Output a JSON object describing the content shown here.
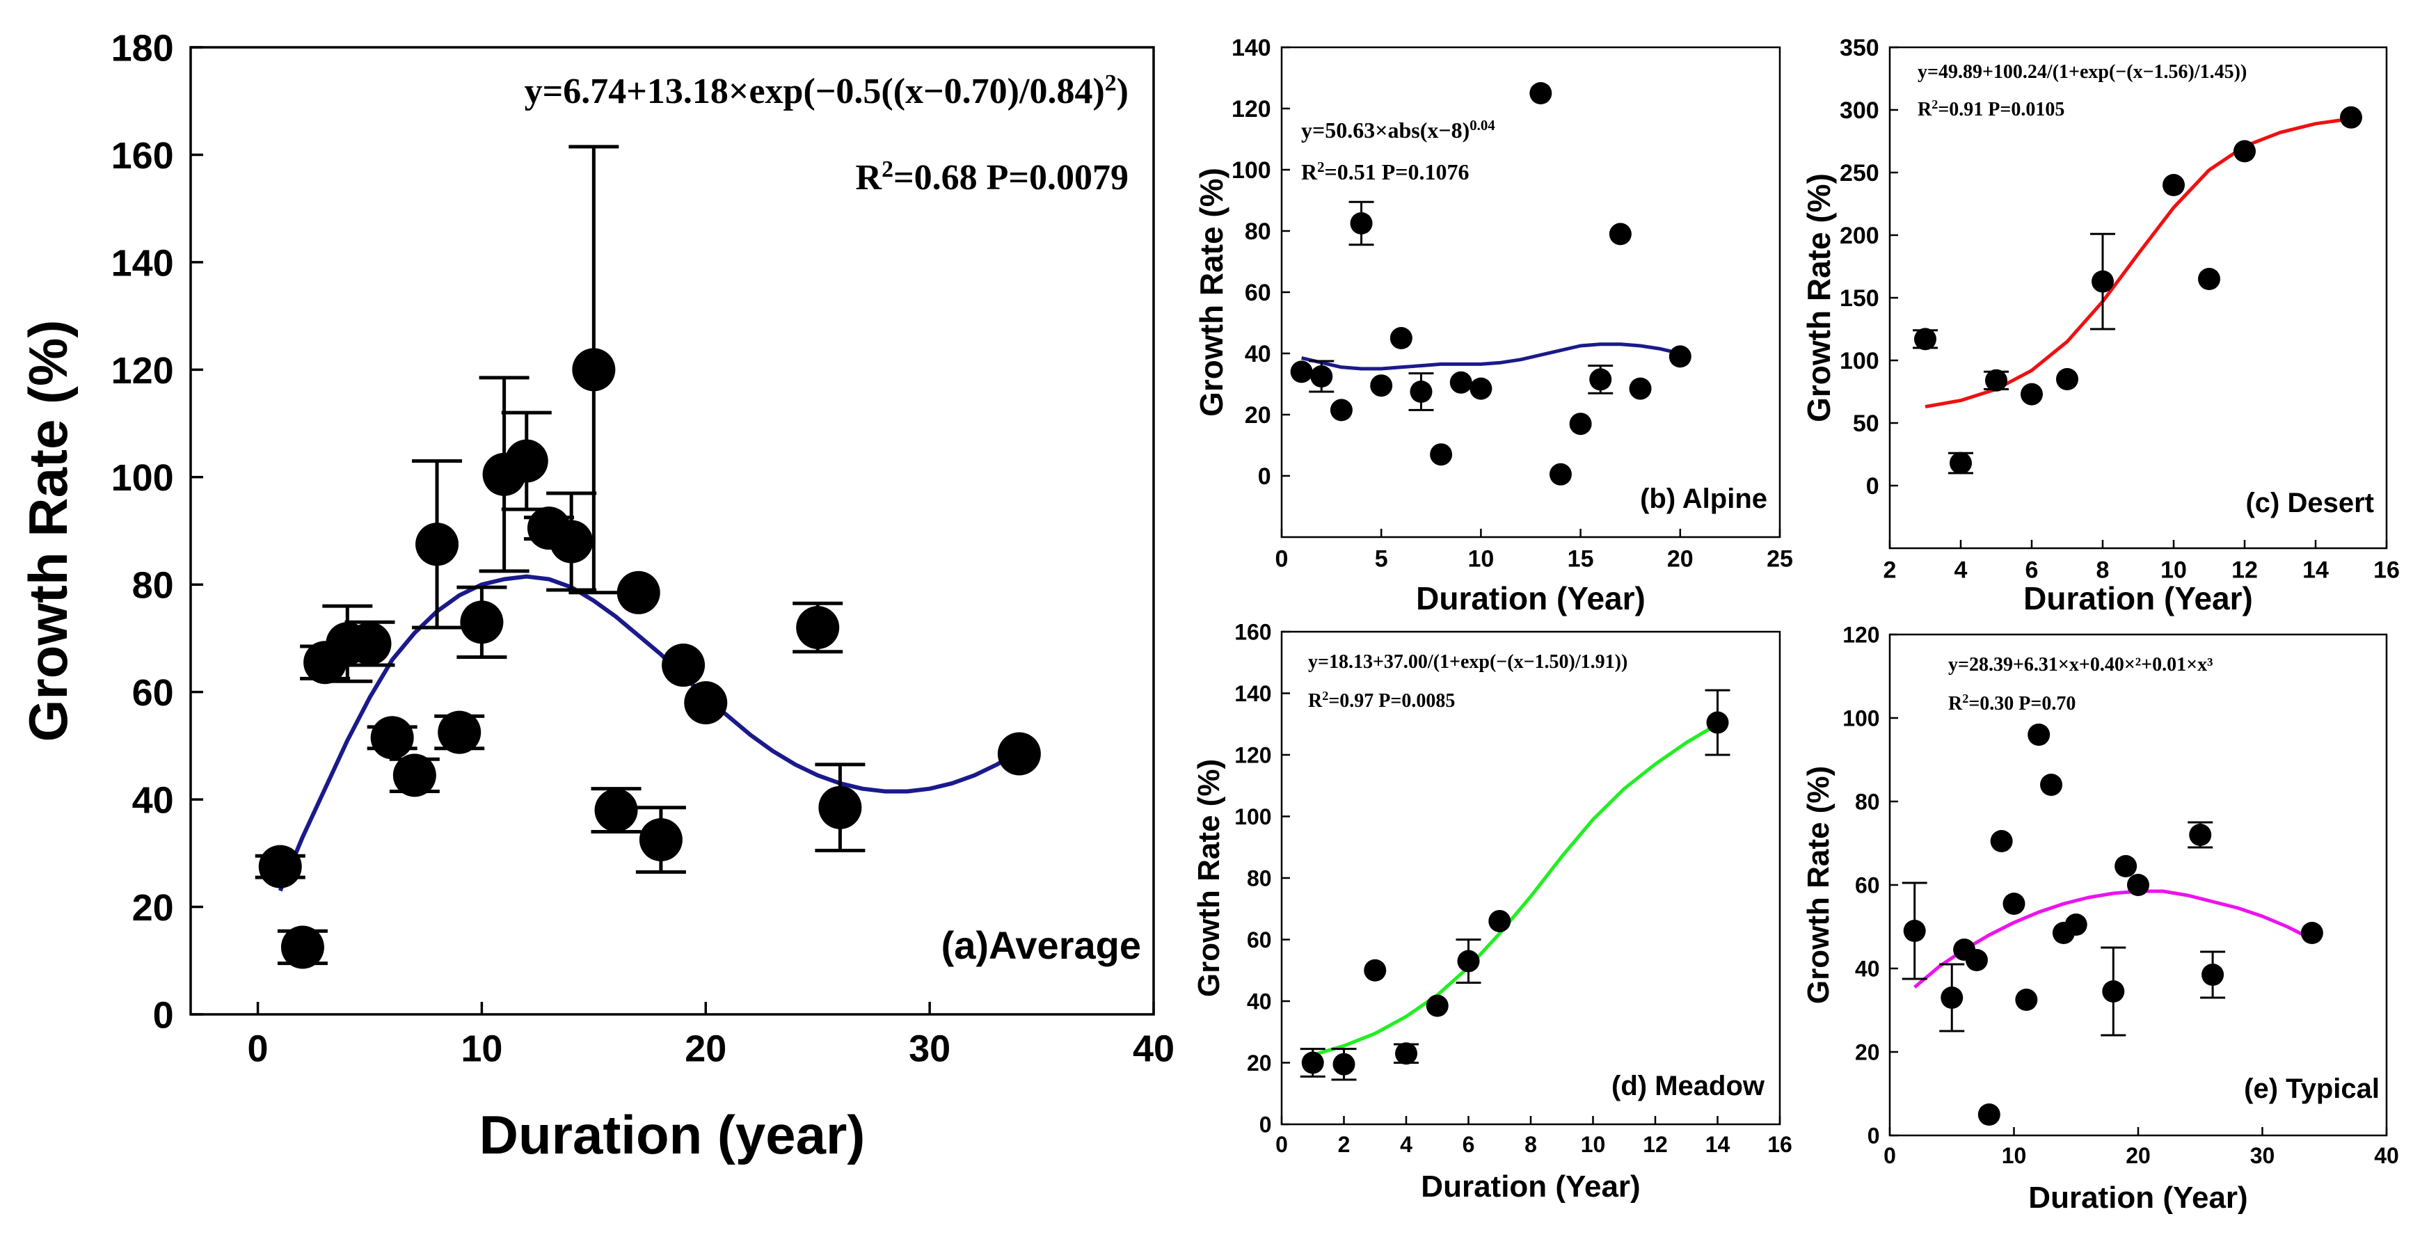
{
  "chart_data": [
    {
      "id": "a",
      "type": "scatter",
      "panel_label": "(a)Average",
      "xlabel": "Duration (year)",
      "ylabel": "Growth Rate (%)",
      "xlim": [
        -3,
        40
      ],
      "ylim": [
        0,
        180
      ],
      "xticks": [
        0,
        10,
        20,
        30,
        40
      ],
      "yticks": [
        0,
        20,
        40,
        60,
        80,
        100,
        120,
        140,
        160,
        180
      ],
      "equation": "y=6.74+13.18×exp(−0.5((x−0.70)/0.84)",
      "equation_sup": "2",
      "equation_tail": ")",
      "stats_R": "R",
      "stats_sup": "2",
      "stats_rest": "=0.68 P=0.0079",
      "fit": {
        "color": "#1a1a8c",
        "x": [
          1,
          2,
          3,
          4,
          5,
          6,
          7,
          8,
          9,
          10,
          11,
          12,
          13,
          14,
          15,
          16,
          17,
          18,
          19,
          20,
          21,
          22,
          23,
          24,
          25,
          26,
          27,
          28,
          29,
          30,
          31,
          32,
          33,
          34
        ],
        "y": [
          23,
          33,
          42,
          51,
          59,
          66,
          71,
          75,
          78,
          80,
          81,
          81.5,
          81,
          79.5,
          77,
          74,
          70.5,
          67,
          63,
          59,
          55.5,
          52,
          49,
          46.5,
          44.5,
          43,
          42,
          41.5,
          41.5,
          42,
          43,
          44.5,
          46.5,
          49
        ]
      },
      "points": [
        {
          "x": 1,
          "y": 27.5,
          "err": 2
        },
        {
          "x": 2,
          "y": 12.5,
          "err": 3
        },
        {
          "x": 3,
          "y": 65.5,
          "err": 3
        },
        {
          "x": 4,
          "y": 69,
          "err": 7
        },
        {
          "x": 5,
          "y": 69,
          "err": 4
        },
        {
          "x": 6,
          "y": 51.5,
          "err": 2
        },
        {
          "x": 7,
          "y": 44.5,
          "err": 3
        },
        {
          "x": 8,
          "y": 87.5,
          "err": 15.5
        },
        {
          "x": 9,
          "y": 52.5,
          "err": 3
        },
        {
          "x": 10,
          "y": 73,
          "err": 6.5
        },
        {
          "x": 11,
          "y": 100.5,
          "err": 18
        },
        {
          "x": 12,
          "y": 103,
          "err": 9
        },
        {
          "x": 13,
          "y": 90.5,
          "err": 2
        },
        {
          "x": 14,
          "y": 88,
          "err": 9
        },
        {
          "x": 15,
          "y": 120,
          "err": 41.5
        },
        {
          "x": 16,
          "y": 38,
          "err": 4
        },
        {
          "x": 17,
          "y": 78.5,
          "err": 0
        },
        {
          "x": 18,
          "y": 32.5,
          "err": 6
        },
        {
          "x": 19,
          "y": 65,
          "err": 0
        },
        {
          "x": 20,
          "y": 58,
          "err": 0
        },
        {
          "x": 25,
          "y": 72,
          "err": 4.5
        },
        {
          "x": 26,
          "y": 38.5,
          "err": 8
        },
        {
          "x": 34,
          "y": 48.5,
          "err": 0
        }
      ]
    },
    {
      "id": "b",
      "type": "scatter",
      "panel_label": "(b) Alpine",
      "xlabel": "Duration (Year)",
      "ylabel": "Growth Rate (%)",
      "xlim": [
        0,
        25
      ],
      "ylim": [
        -20,
        140
      ],
      "xticks": [
        0,
        5,
        10,
        15,
        20,
        25
      ],
      "yticks": [
        0,
        20,
        40,
        60,
        80,
        100,
        120,
        140
      ],
      "equation": "y=50.63×abs(x−8)",
      "equation_sup": "0.04",
      "stats_R": "R",
      "stats_sup": "2",
      "stats_rest": "=0.51 P=0.1076",
      "fit": {
        "color": "#1a1a8c",
        "x": [
          1,
          2,
          3,
          4,
          5,
          6,
          7,
          8,
          9,
          10,
          11,
          12,
          13,
          14,
          15,
          16,
          17,
          18,
          19,
          20
        ],
        "y": [
          38.5,
          37,
          35.5,
          35,
          35,
          35.5,
          36,
          36.5,
          36.5,
          36.5,
          37,
          38,
          39.5,
          41,
          42.5,
          43,
          43,
          42.5,
          41.5,
          40
        ]
      },
      "points": [
        {
          "x": 1,
          "y": 34,
          "err": 0
        },
        {
          "x": 2,
          "y": 32.5,
          "err": 5
        },
        {
          "x": 3,
          "y": 21.5,
          "err": 0
        },
        {
          "x": 4,
          "y": 82.5,
          "err": 7
        },
        {
          "x": 5,
          "y": 29.5,
          "err": 0
        },
        {
          "x": 6,
          "y": 45,
          "err": 0
        },
        {
          "x": 7,
          "y": 27.5,
          "err": 6
        },
        {
          "x": 8,
          "y": 7,
          "err": 0
        },
        {
          "x": 9,
          "y": 30.5,
          "err": 0
        },
        {
          "x": 10,
          "y": 28.5,
          "err": 0
        },
        {
          "x": 13,
          "y": 125,
          "err": 0
        },
        {
          "x": 14,
          "y": 0.5,
          "err": 0
        },
        {
          "x": 15,
          "y": 17,
          "err": 0
        },
        {
          "x": 16,
          "y": 31.5,
          "err": 4.5
        },
        {
          "x": 17,
          "y": 79,
          "err": 0
        },
        {
          "x": 18,
          "y": 28.5,
          "err": 0
        },
        {
          "x": 20,
          "y": 39,
          "err": 0
        }
      ]
    },
    {
      "id": "c",
      "type": "scatter",
      "panel_label": "(c) Desert",
      "xlabel": "Duration (Year)",
      "ylabel": "Growth Rate (%)",
      "xlim": [
        2,
        16
      ],
      "ylim": [
        -50,
        350
      ],
      "xticks": [
        2,
        4,
        6,
        8,
        10,
        12,
        14,
        16
      ],
      "yticks": [
        0,
        50,
        100,
        150,
        200,
        250,
        300,
        350
      ],
      "equation": "y=49.89+100.24/(1+exp(−(x−1.56)/1.45))",
      "stats_R": "R",
      "stats_sup": "2",
      "stats_rest": "=0.91 P=0.0105",
      "fit": {
        "color": "#ee1111",
        "x": [
          3,
          4,
          5,
          6,
          7,
          8,
          9,
          10,
          11,
          12,
          13,
          14,
          15
        ],
        "y": [
          63,
          68,
          77,
          92,
          115,
          147,
          185,
          222,
          252,
          271,
          282,
          289,
          293
        ]
      },
      "points": [
        {
          "x": 3,
          "y": 117,
          "err": 7
        },
        {
          "x": 4,
          "y": 18,
          "err": 8
        },
        {
          "x": 5,
          "y": 84,
          "err": 7
        },
        {
          "x": 6,
          "y": 73,
          "err": 0
        },
        {
          "x": 7,
          "y": 85,
          "err": 0
        },
        {
          "x": 8,
          "y": 163,
          "err": 38
        },
        {
          "x": 10,
          "y": 240,
          "err": 0
        },
        {
          "x": 11,
          "y": 165,
          "err": 0
        },
        {
          "x": 12,
          "y": 267,
          "err": 0
        },
        {
          "x": 15,
          "y": 294,
          "err": 0
        }
      ]
    },
    {
      "id": "d",
      "type": "scatter",
      "panel_label": "(d) Meadow",
      "xlabel": "Duration (Year)",
      "ylabel": "Growth Rate (%)",
      "xlim": [
        0,
        16
      ],
      "ylim": [
        0,
        160
      ],
      "xticks": [
        0,
        2,
        4,
        6,
        8,
        10,
        12,
        14,
        16
      ],
      "yticks": [
        0,
        20,
        40,
        60,
        80,
        100,
        120,
        140,
        160
      ],
      "equation": "y=18.13+37.00/(1+exp(−(x−1.50)/1.91))",
      "stats_R": "R",
      "stats_sup": "2",
      "stats_rest": "=0.97 P=0.0085",
      "fit": {
        "color": "#22ee22",
        "x": [
          1,
          2,
          3,
          4,
          5,
          6,
          7,
          8,
          9,
          10,
          11,
          12,
          13,
          14
        ],
        "y": [
          22.5,
          25.5,
          29.5,
          35,
          42,
          51,
          62,
          74,
          87,
          99,
          109,
          117,
          124,
          130
        ]
      },
      "points": [
        {
          "x": 1,
          "y": 20,
          "err": 4.5
        },
        {
          "x": 2,
          "y": 19.5,
          "err": 5
        },
        {
          "x": 3,
          "y": 50,
          "err": 0
        },
        {
          "x": 4,
          "y": 23,
          "err": 3
        },
        {
          "x": 5,
          "y": 38.5,
          "err": 0
        },
        {
          "x": 6,
          "y": 53,
          "err": 7
        },
        {
          "x": 7,
          "y": 66,
          "err": 0
        },
        {
          "x": 14,
          "y": 130.5,
          "err": 10.5
        }
      ]
    },
    {
      "id": "e",
      "type": "scatter",
      "panel_label": "(e) Typical",
      "xlabel": "Duration (Year)",
      "ylabel": "Growth Rate (%)",
      "xlim": [
        0,
        40
      ],
      "ylim": [
        0,
        120
      ],
      "xticks": [
        0,
        10,
        20,
        30,
        40
      ],
      "yticks": [
        0,
        20,
        40,
        60,
        80,
        100,
        120
      ],
      "equation": "y=28.39+6.31×x+0.40×²+0.01×x³",
      "stats_R": "R",
      "stats_sup": "2",
      "stats_rest": "=0.30 P=0.70",
      "fit": {
        "color": "#ee11ee",
        "x": [
          2,
          4,
          6,
          8,
          10,
          12,
          14,
          16,
          18,
          20,
          22,
          24,
          26,
          28,
          30,
          32,
          34
        ],
        "y": [
          35.5,
          40.5,
          44.5,
          48,
          51,
          53.5,
          55.5,
          57,
          58,
          58.5,
          58.5,
          57.5,
          56,
          54.5,
          52.5,
          50,
          47
        ]
      },
      "points": [
        {
          "x": 2,
          "y": 49,
          "err": 11.5
        },
        {
          "x": 5,
          "y": 33,
          "err": 8
        },
        {
          "x": 6,
          "y": 44.5,
          "err": 0
        },
        {
          "x": 7,
          "y": 42,
          "err": 0
        },
        {
          "x": 8,
          "y": 5,
          "err": 0
        },
        {
          "x": 9,
          "y": 70.5,
          "err": 0
        },
        {
          "x": 10,
          "y": 55.5,
          "err": 0
        },
        {
          "x": 11,
          "y": 32.5,
          "err": 0
        },
        {
          "x": 12,
          "y": 96,
          "err": 0
        },
        {
          "x": 13,
          "y": 84,
          "err": 0
        },
        {
          "x": 14,
          "y": 48.5,
          "err": 0
        },
        {
          "x": 15,
          "y": 50.5,
          "err": 0
        },
        {
          "x": 18,
          "y": 34.5,
          "err": 10.5
        },
        {
          "x": 19,
          "y": 64.5,
          "err": 0
        },
        {
          "x": 20,
          "y": 60,
          "err": 0
        },
        {
          "x": 25,
          "y": 72,
          "err": 3
        },
        {
          "x": 26,
          "y": 38.5,
          "err": 5.5
        },
        {
          "x": 34,
          "y": 48.5,
          "err": 0
        }
      ]
    }
  ]
}
